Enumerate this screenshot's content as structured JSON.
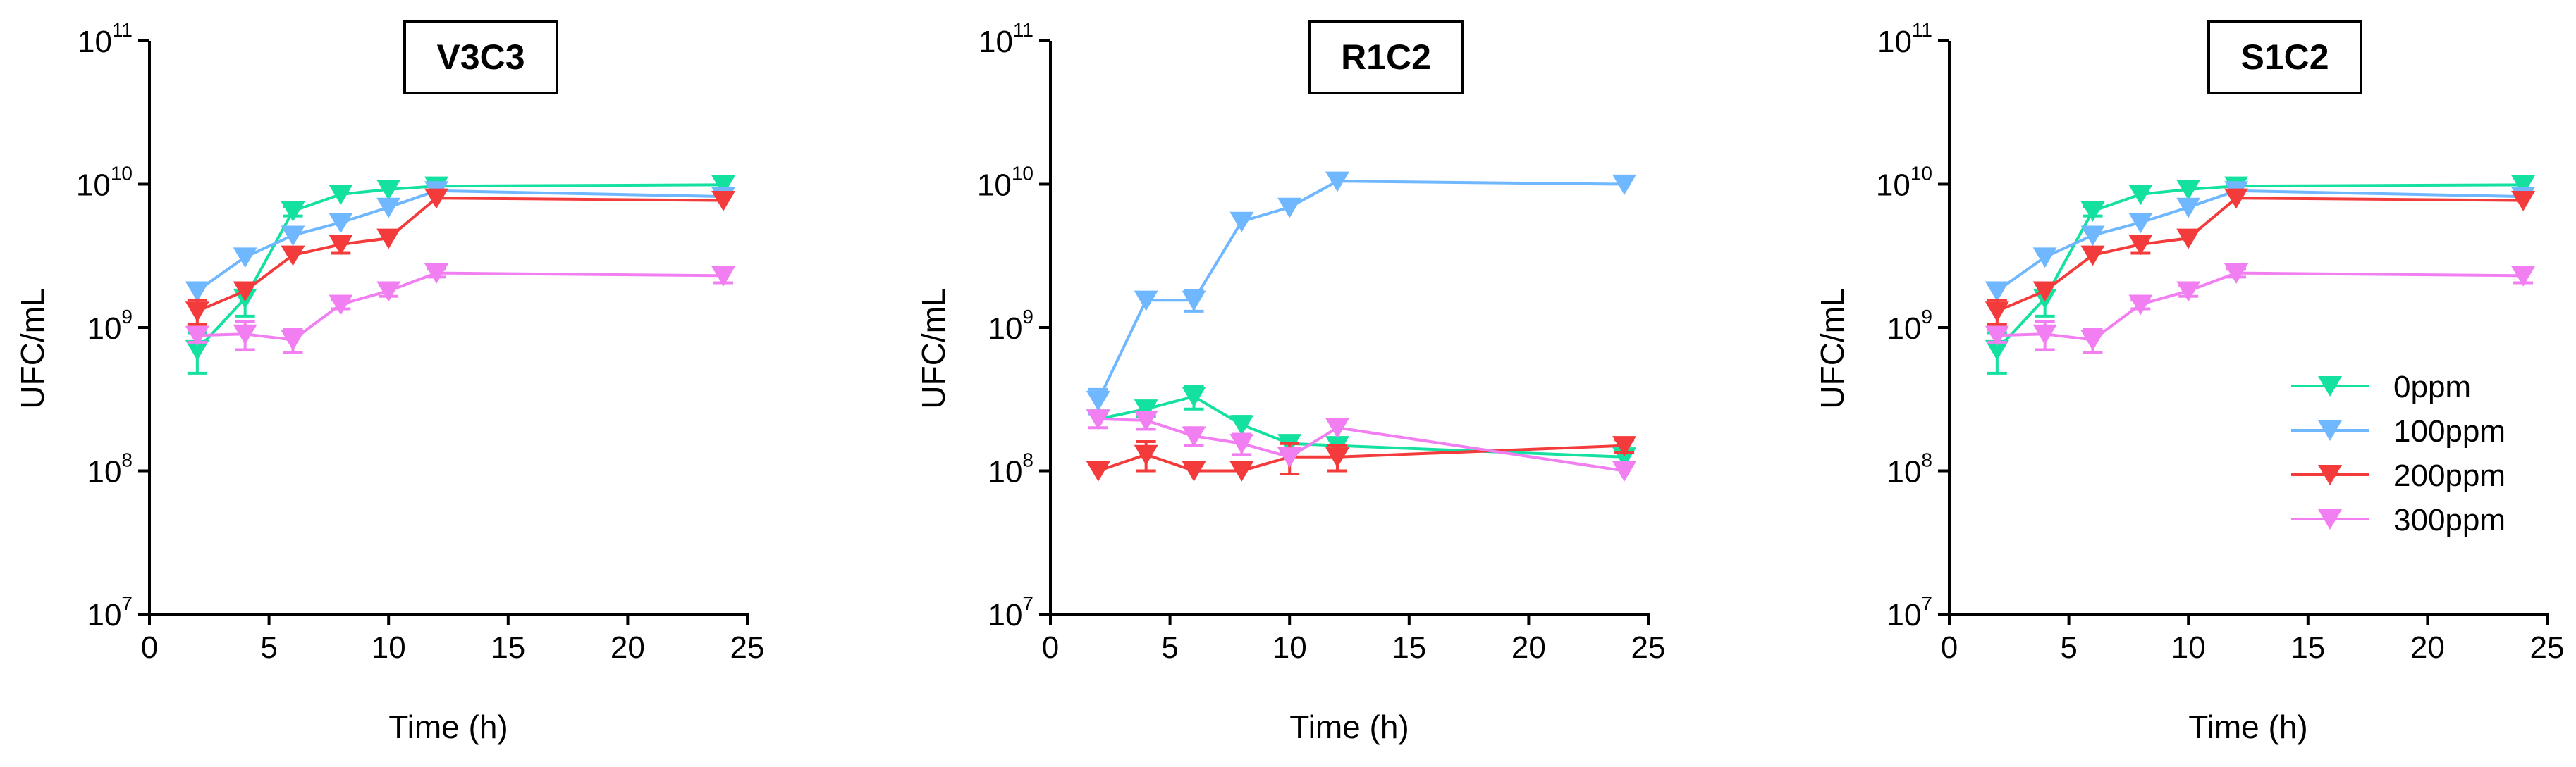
{
  "colors": {
    "0ppm": "#14e0a0",
    "100ppm": "#6fb7ff",
    "200ppm": "#f43b3b",
    "300ppm": "#f17ff1"
  },
  "legend": [
    "0ppm",
    "100ppm",
    "200ppm",
    "300ppm"
  ],
  "chart_data": [
    {
      "type": "line",
      "title": "V3C3",
      "xlabel": "Time (h)",
      "ylabel": "UFC/mL",
      "yscale": "log",
      "xlim": [
        0,
        25
      ],
      "ylim": [
        10000000,
        100000000000
      ],
      "xticks": [
        "0",
        "5",
        "10",
        "15",
        "20",
        "25"
      ],
      "ytick_base": "10",
      "ytick_exponents": [
        "7",
        "8",
        "9",
        "10",
        "11"
      ],
      "x": [
        2,
        4,
        6,
        8,
        10,
        12,
        24
      ],
      "series": [
        {
          "name": "0ppm",
          "values": [
            700000000,
            1600000000,
            6500000000,
            8500000000,
            9200000000,
            9700000000,
            9900000000
          ],
          "errors": [
            220000000,
            400000000,
            500000000,
            0,
            0,
            0,
            0
          ]
        },
        {
          "name": "100ppm",
          "values": [
            1800000000,
            3100000000,
            4400000000,
            5400000000,
            6900000000,
            9000000000,
            8200000000
          ],
          "errors": [
            0,
            0,
            0,
            0,
            0,
            0,
            0
          ]
        },
        {
          "name": "200ppm",
          "values": [
            1300000000,
            1800000000,
            3200000000,
            3800000000,
            4200000000,
            8000000000,
            7700000000
          ],
          "errors": [
            250000000,
            0,
            0,
            500000000,
            0,
            0,
            0
          ]
        },
        {
          "name": "300ppm",
          "values": [
            880000000,
            900000000,
            820000000,
            1450000000,
            1800000000,
            2400000000,
            2300000000
          ],
          "errors": [
            90000000,
            200000000,
            150000000,
            100000000,
            150000000,
            150000000,
            250000000
          ]
        }
      ]
    },
    {
      "type": "line",
      "title": "R1C2",
      "xlabel": "Time (h)",
      "ylabel": "UFC/mL",
      "yscale": "log",
      "xlim": [
        0,
        25
      ],
      "ylim": [
        10000000,
        100000000000
      ],
      "xticks": [
        "0",
        "5",
        "10",
        "15",
        "20",
        "25"
      ],
      "ytick_base": "10",
      "ytick_exponents": [
        "7",
        "8",
        "9",
        "10",
        "11"
      ],
      "x": [
        2,
        4,
        6,
        8,
        10,
        12,
        24
      ],
      "series": [
        {
          "name": "0ppm",
          "values": [
            230000000,
            270000000,
            330000000,
            210000000,
            155000000,
            150000000,
            125000000
          ],
          "errors": [
            0,
            30000000,
            60000000,
            30000000,
            20000000,
            0,
            0
          ]
        },
        {
          "name": "100ppm",
          "values": [
            310000000,
            1550000000,
            1550000000,
            5500000000,
            6900000000,
            10500000000,
            10000000000
          ],
          "errors": [
            60000000,
            0,
            250000000,
            0,
            0,
            0,
            0
          ]
        },
        {
          "name": "200ppm",
          "values": [
            100000000,
            130000000,
            100000000,
            100000000,
            125000000,
            125000000,
            150000000
          ],
          "errors": [
            0,
            30000000,
            0,
            0,
            30000000,
            25000000,
            15000000
          ]
        },
        {
          "name": "300ppm",
          "values": [
            230000000,
            225000000,
            175000000,
            155000000,
            125000000,
            200000000,
            100000000
          ],
          "errors": [
            30000000,
            30000000,
            25000000,
            25000000,
            0,
            0,
            0
          ]
        }
      ]
    },
    {
      "type": "line",
      "title": "S1C2",
      "xlabel": "Time (h)",
      "ylabel": "UFC/mL",
      "yscale": "log",
      "xlim": [
        0,
        25
      ],
      "ylim": [
        10000000,
        100000000000
      ],
      "xticks": [
        "0",
        "5",
        "10",
        "15",
        "20",
        "25"
      ],
      "ytick_base": "10",
      "ytick_exponents": [
        "7",
        "8",
        "9",
        "10",
        "11"
      ],
      "x": [
        2,
        4,
        6,
        8,
        10,
        12,
        24
      ],
      "legend_position": "center-right",
      "series": [
        {
          "name": "0ppm",
          "values": [
            700000000,
            1600000000,
            6500000000,
            8500000000,
            9200000000,
            9700000000,
            9900000000
          ],
          "errors": [
            220000000,
            400000000,
            500000000,
            0,
            0,
            0,
            0
          ]
        },
        {
          "name": "100ppm",
          "values": [
            1800000000,
            3100000000,
            4400000000,
            5400000000,
            6900000000,
            9000000000,
            8200000000
          ],
          "errors": [
            0,
            0,
            0,
            0,
            0,
            0,
            0
          ]
        },
        {
          "name": "200ppm",
          "values": [
            1300000000,
            1800000000,
            3200000000,
            3800000000,
            4200000000,
            8000000000,
            7700000000
          ],
          "errors": [
            250000000,
            0,
            0,
            500000000,
            0,
            0,
            0
          ]
        },
        {
          "name": "300ppm",
          "values": [
            880000000,
            900000000,
            820000000,
            1450000000,
            1800000000,
            2400000000,
            2300000000
          ],
          "errors": [
            90000000,
            200000000,
            150000000,
            100000000,
            150000000,
            150000000,
            250000000
          ]
        }
      ]
    }
  ]
}
